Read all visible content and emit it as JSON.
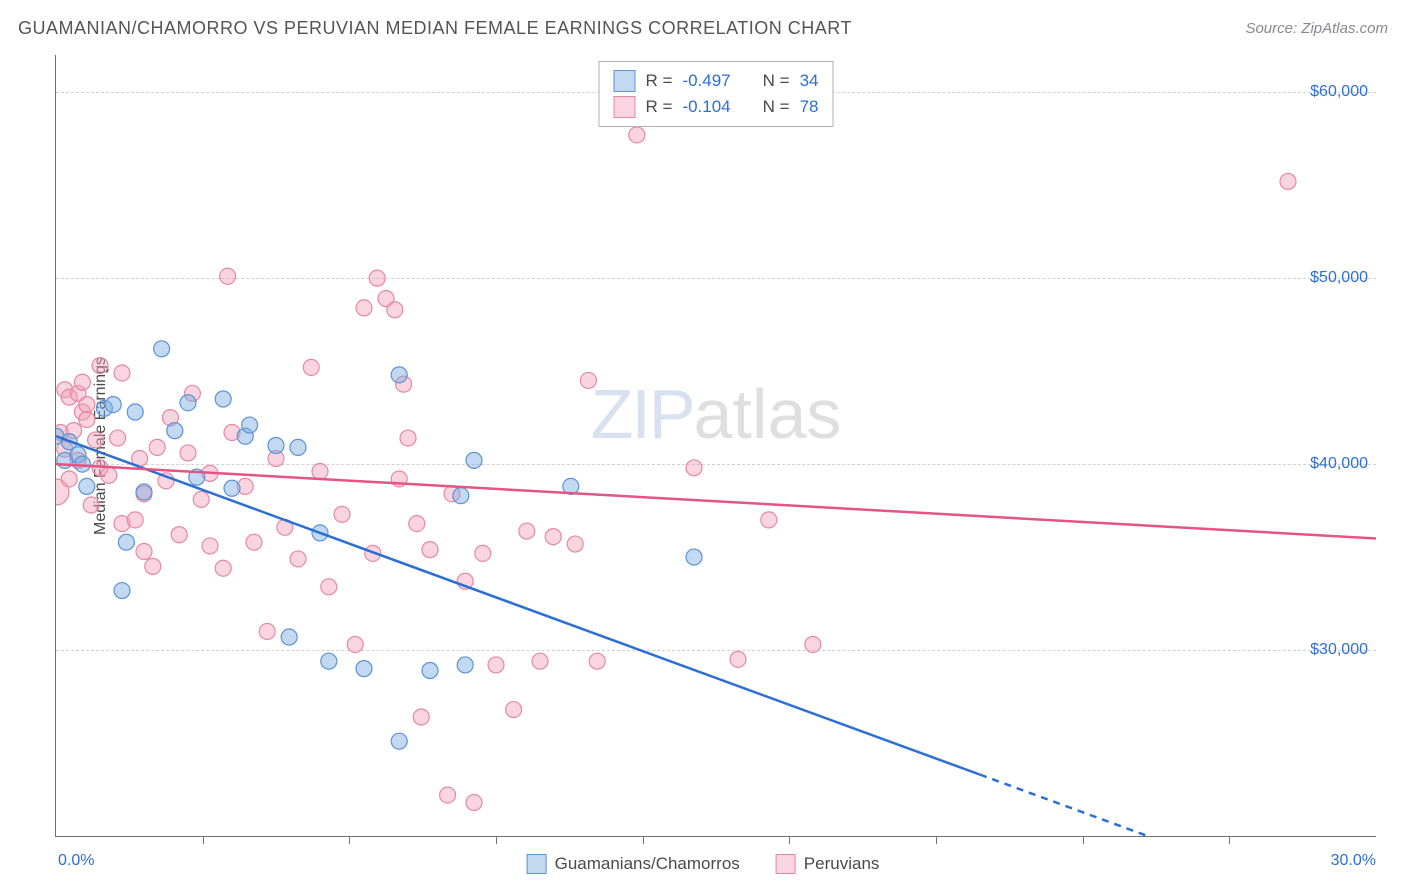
{
  "title": "GUAMANIAN/CHAMORRO VS PERUVIAN MEDIAN FEMALE EARNINGS CORRELATION CHART",
  "source": "Source: ZipAtlas.com",
  "ylabel": "Median Female Earnings",
  "watermark_a": "ZIP",
  "watermark_b": "atlas",
  "chart": {
    "type": "scatter",
    "xlim": [
      0,
      30
    ],
    "ylim": [
      20000,
      62000
    ],
    "x_min_label": "0.0%",
    "x_max_label": "30.0%",
    "y_ticks": [
      30000,
      40000,
      50000,
      60000
    ],
    "y_tick_labels": [
      "$30,000",
      "$40,000",
      "$50,000",
      "$60,000"
    ],
    "x_tick_positions": [
      3.333,
      6.667,
      10.0,
      13.333,
      16.667,
      20.0,
      23.333,
      26.667
    ],
    "grid_color": "#d0d0d0",
    "axis_color": "#707070",
    "background_color": "#ffffff",
    "tick_label_color": "#2b6fd6",
    "label_fontsize": 16,
    "marker_radius": 8,
    "marker_radius_large": 13,
    "marker_stroke_width": 1.2,
    "line_width": 2.5
  },
  "series": [
    {
      "name": "Guamanians/Chamorros",
      "fill": "rgba(120,170,225,0.45)",
      "stroke": "#5a94d6",
      "line_color": "#2b6fd6",
      "trend": {
        "x1": 0,
        "y1": 41500,
        "x2": 30,
        "y2": 15500
      },
      "dash_from_x": 21.0,
      "stats": {
        "R": "-0.497",
        "N": "34"
      },
      "points": [
        [
          0.0,
          41500
        ],
        [
          0.2,
          40200
        ],
        [
          0.3,
          41200
        ],
        [
          0.5,
          40500
        ],
        [
          0.6,
          40000
        ],
        [
          0.7,
          38800
        ],
        [
          1.1,
          43000
        ],
        [
          1.3,
          43200
        ],
        [
          1.5,
          33200
        ],
        [
          1.6,
          35800
        ],
        [
          1.8,
          42800
        ],
        [
          2.0,
          38500
        ],
        [
          2.4,
          46200
        ],
        [
          2.7,
          41800
        ],
        [
          3.0,
          43300
        ],
        [
          3.2,
          39300
        ],
        [
          3.8,
          43500
        ],
        [
          4.0,
          38700
        ],
        [
          4.3,
          41500
        ],
        [
          4.4,
          42100
        ],
        [
          5.0,
          41000
        ],
        [
          5.3,
          30700
        ],
        [
          5.5,
          40900
        ],
        [
          6.0,
          36300
        ],
        [
          6.2,
          29400
        ],
        [
          7.0,
          29000
        ],
        [
          7.8,
          25100
        ],
        [
          7.8,
          44800
        ],
        [
          8.5,
          28900
        ],
        [
          9.2,
          38300
        ],
        [
          9.3,
          29200
        ],
        [
          9.5,
          40200
        ],
        [
          11.7,
          38800
        ],
        [
          14.5,
          35000
        ]
      ]
    },
    {
      "name": "Peruvians",
      "fill": "rgba(245,160,185,0.45)",
      "stroke": "#e589a3",
      "line_color": "#e25584",
      "trend": {
        "x1": 0,
        "y1": 40000,
        "x2": 30,
        "y2": 36000
      },
      "dash_from_x": 30,
      "stats": {
        "R": "-0.104",
        "N": "78"
      },
      "points": [
        [
          0.1,
          41700
        ],
        [
          0.2,
          44000
        ],
        [
          0.2,
          40800
        ],
        [
          0.3,
          43600
        ],
        [
          0.3,
          39200
        ],
        [
          0.4,
          41800
        ],
        [
          0.5,
          43800
        ],
        [
          0.5,
          40200
        ],
        [
          0.6,
          42800
        ],
        [
          0.6,
          44400
        ],
        [
          0.7,
          42400
        ],
        [
          0.7,
          43200
        ],
        [
          0.8,
          37800
        ],
        [
          0.9,
          41300
        ],
        [
          1.0,
          45300
        ],
        [
          1.0,
          39800
        ],
        [
          1.2,
          39400
        ],
        [
          1.4,
          41400
        ],
        [
          1.5,
          36800
        ],
        [
          1.5,
          44900
        ],
        [
          1.8,
          37000
        ],
        [
          1.9,
          40300
        ],
        [
          2.0,
          38400
        ],
        [
          2.0,
          35300
        ],
        [
          2.2,
          34500
        ],
        [
          2.3,
          40900
        ],
        [
          2.5,
          39100
        ],
        [
          2.6,
          42500
        ],
        [
          2.8,
          36200
        ],
        [
          3.0,
          40600
        ],
        [
          3.1,
          43800
        ],
        [
          3.3,
          38100
        ],
        [
          3.5,
          39500
        ],
        [
          3.5,
          35600
        ],
        [
          3.8,
          34400
        ],
        [
          3.9,
          50100
        ],
        [
          4.0,
          41700
        ],
        [
          4.3,
          38800
        ],
        [
          4.5,
          35800
        ],
        [
          4.8,
          31000
        ],
        [
          5.0,
          40300
        ],
        [
          5.2,
          36600
        ],
        [
          5.5,
          34900
        ],
        [
          5.8,
          45200
        ],
        [
          6.0,
          39600
        ],
        [
          6.2,
          33400
        ],
        [
          6.5,
          37300
        ],
        [
          6.8,
          30300
        ],
        [
          7.0,
          48400
        ],
        [
          7.2,
          35200
        ],
        [
          7.3,
          50000
        ],
        [
          7.5,
          48900
        ],
        [
          7.7,
          48300
        ],
        [
          7.8,
          39200
        ],
        [
          7.9,
          44300
        ],
        [
          8.0,
          41400
        ],
        [
          8.2,
          36800
        ],
        [
          8.3,
          26400
        ],
        [
          8.5,
          35400
        ],
        [
          8.9,
          22200
        ],
        [
          9.0,
          38400
        ],
        [
          9.3,
          33700
        ],
        [
          9.5,
          21800
        ],
        [
          9.7,
          35200
        ],
        [
          10.0,
          29200
        ],
        [
          10.4,
          26800
        ],
        [
          10.7,
          36400
        ],
        [
          11.0,
          29400
        ],
        [
          11.3,
          36100
        ],
        [
          11.8,
          35700
        ],
        [
          12.1,
          44500
        ],
        [
          12.3,
          29400
        ],
        [
          13.2,
          57700
        ],
        [
          14.5,
          39800
        ],
        [
          15.5,
          29500
        ],
        [
          16.2,
          37000
        ],
        [
          17.2,
          30300
        ],
        [
          28.0,
          55200
        ]
      ],
      "large_point": [
        0.0,
        38500
      ]
    }
  ],
  "bottom_legend": [
    {
      "label": "Guamanians/Chamorros",
      "fill": "rgba(120,170,225,0.45)",
      "stroke": "#5a94d6"
    },
    {
      "label": "Peruvians",
      "fill": "rgba(245,160,185,0.45)",
      "stroke": "#e589a3"
    }
  ]
}
